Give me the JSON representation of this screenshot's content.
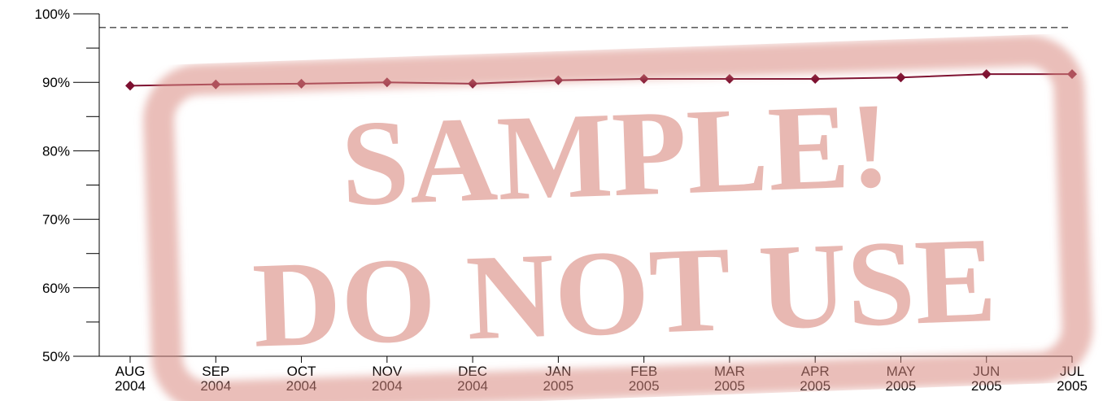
{
  "chart_data": {
    "type": "line",
    "categories": [
      [
        "AUG",
        "2004"
      ],
      [
        "SEP",
        "2004"
      ],
      [
        "OCT",
        "2004"
      ],
      [
        "NOV",
        "2004"
      ],
      [
        "DEC",
        "2004"
      ],
      [
        "JAN",
        "2005"
      ],
      [
        "FEB",
        "2005"
      ],
      [
        "MAR",
        "2005"
      ],
      [
        "APR",
        "2005"
      ],
      [
        "MAY",
        "2005"
      ],
      [
        "JUN",
        "2005"
      ],
      [
        "JUL",
        "2005"
      ]
    ],
    "series": [
      {
        "color": "#7d1030",
        "values": [
          89.5,
          89.7,
          89.8,
          90.0,
          89.8,
          90.3,
          90.5,
          90.5,
          90.5,
          90.7,
          91.2,
          91.2
        ]
      }
    ],
    "ylim": [
      50,
      100
    ],
    "yticks": [
      {
        "value": 50,
        "label": "50%"
      },
      {
        "value": 60,
        "label": "60%"
      },
      {
        "value": 70,
        "label": "70%"
      },
      {
        "value": 80,
        "label": "80%"
      },
      {
        "value": 90,
        "label": "90%"
      },
      {
        "value": 100,
        "label": "100%"
      }
    ],
    "yminor_ticks": [
      55,
      65,
      75,
      85,
      95
    ],
    "reference_line": 98,
    "watermark": [
      "SAMPLE!",
      "DO NOT USE"
    ]
  }
}
